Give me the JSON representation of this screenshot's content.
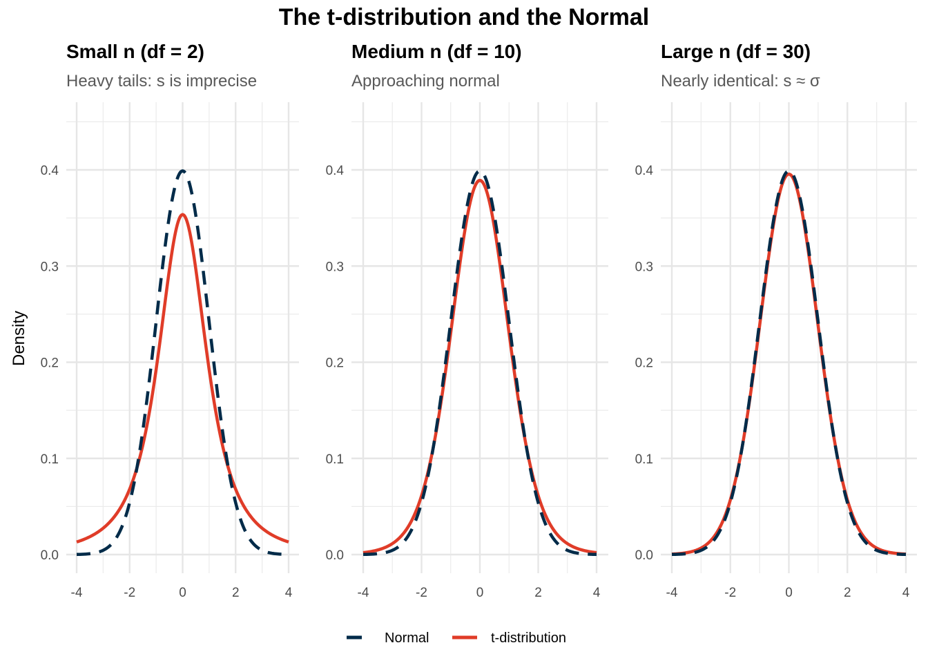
{
  "chart_data": {
    "type": "line",
    "title": "The t-distribution and the Normal",
    "ylabel": "Density",
    "xlabel": "",
    "grid": true,
    "legend_position": "bottom",
    "legend": [
      {
        "name": "Normal",
        "color": "#002b49",
        "linetype": "dashed"
      },
      {
        "name": "t-distribution",
        "color": "#e03c28",
        "linetype": "solid"
      }
    ],
    "xlim": [
      -4,
      4
    ],
    "ylim": [
      0,
      0.4
    ],
    "x_ticks": [
      "-4",
      "-2",
      "0",
      "2",
      "4"
    ],
    "y_ticks": [
      "0.0",
      "0.1",
      "0.2",
      "0.3",
      "0.4"
    ],
    "x_tick_values": [
      -4,
      -2,
      0,
      2,
      4
    ],
    "y_tick_values": [
      0,
      0.1,
      0.2,
      0.3,
      0.4
    ],
    "panels": [
      {
        "title": "Small n (df = 2)",
        "subtitle": "Heavy tails: s is imprecise",
        "df": 2,
        "series": [
          {
            "name": "Normal",
            "function": "dnorm(x)",
            "peak": 0.399
          },
          {
            "name": "t-distribution",
            "function": "dt(x, df=2)",
            "peak": 0.354
          }
        ]
      },
      {
        "title": "Medium n (df = 10)",
        "subtitle": "Approaching normal",
        "df": 10,
        "series": [
          {
            "name": "Normal",
            "function": "dnorm(x)",
            "peak": 0.399
          },
          {
            "name": "t-distribution",
            "function": "dt(x, df=10)",
            "peak": 0.389
          }
        ]
      },
      {
        "title": "Large n (df = 30)",
        "subtitle": "Nearly identical: s ≈ σ",
        "df": 30,
        "series": [
          {
            "name": "Normal",
            "function": "dnorm(x)",
            "peak": 0.399
          },
          {
            "name": "t-distribution",
            "function": "dt(x, df=30)",
            "peak": 0.396
          }
        ]
      }
    ]
  }
}
